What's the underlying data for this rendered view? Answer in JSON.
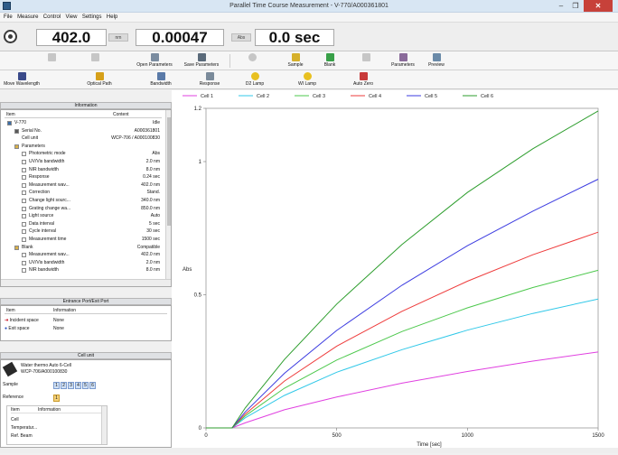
{
  "window": {
    "title": "Parallel Time Course Measurement - V-770/A000361801",
    "min_label": "–",
    "max_label": "❐",
    "close_label": "✕"
  },
  "menu": [
    "File",
    "Measure",
    "Control",
    "View",
    "Settings",
    "Help"
  ],
  "readout": {
    "wavelength": "402.0",
    "wavelength_unit": "nm",
    "abs": "0.00047",
    "abs_unit": "Abs",
    "time": "0.0 sec"
  },
  "toolbar1": [
    {
      "label": "",
      "disabled": true
    },
    {
      "label": "",
      "disabled": true
    },
    {
      "label": "Open Parameters",
      "disabled": false
    },
    {
      "label": "Save Parameters",
      "disabled": false
    },
    {
      "label": "",
      "disabled": true
    },
    {
      "label": "Sample",
      "disabled": false
    },
    {
      "label": "Blank",
      "disabled": false
    },
    {
      "label": "",
      "disabled": true
    },
    {
      "label": "Parameters",
      "disabled": false
    },
    {
      "label": "Preview",
      "disabled": false
    }
  ],
  "toolbar2": [
    "Move Wavelength",
    "Optical Path",
    "Bandwidth",
    "Response",
    "D2 Lamp",
    "WI Lamp",
    "Auto Zero"
  ],
  "colors": {
    "cell1": "#e040e0",
    "cell2": "#30c8e8",
    "cell3": "#4cc84c",
    "cell4": "#ee3b3b",
    "cell5": "#3b3be0",
    "cell6": "#2e9e2e"
  },
  "info_panel": {
    "title": "Information",
    "col_item": "Item",
    "col_content": "Content",
    "rows": [
      {
        "indent": 0,
        "item": "V-770",
        "content": "Idle",
        "icon": "instrument"
      },
      {
        "indent": 1,
        "item": "Serial No.",
        "content": "A000361801",
        "icon": "serial"
      },
      {
        "indent": 1,
        "item": "Cell unit",
        "content": "WCP-706 / A000100830",
        "icon": "none"
      },
      {
        "indent": 1,
        "item": "Parameters",
        "content": "",
        "icon": "folder"
      },
      {
        "indent": 2,
        "item": "Photometric mode",
        "content": "Abs",
        "icon": "doc"
      },
      {
        "indent": 2,
        "item": "UV/Vis bandwidth",
        "content": "2.0 nm",
        "icon": "doc"
      },
      {
        "indent": 2,
        "item": "NIR bandwidth",
        "content": "8.0 nm",
        "icon": "doc"
      },
      {
        "indent": 2,
        "item": "Response",
        "content": "0.24 sec",
        "icon": "doc"
      },
      {
        "indent": 2,
        "item": "Measurement wav...",
        "content": "402.0 nm",
        "icon": "doc"
      },
      {
        "indent": 2,
        "item": "Correction",
        "content": "Stand.",
        "icon": "doc"
      },
      {
        "indent": 2,
        "item": "Change light sourc...",
        "content": "340.0 nm",
        "icon": "doc"
      },
      {
        "indent": 2,
        "item": "Grating change wa...",
        "content": "850.0 nm",
        "icon": "doc"
      },
      {
        "indent": 2,
        "item": "Light source",
        "content": "Auto",
        "icon": "doc"
      },
      {
        "indent": 2,
        "item": "Data interval",
        "content": "5 sec",
        "icon": "doc"
      },
      {
        "indent": 2,
        "item": "Cycle interval",
        "content": "30 sec",
        "icon": "doc"
      },
      {
        "indent": 2,
        "item": "Measurement time",
        "content": "1500 sec",
        "icon": "doc"
      },
      {
        "indent": 1,
        "item": "Blank",
        "content": "Compatible",
        "icon": "folder"
      },
      {
        "indent": 2,
        "item": "Measurement wav...",
        "content": "402.0 nm",
        "icon": "doc"
      },
      {
        "indent": 2,
        "item": "UV/Vis bandwidth",
        "content": "2.0 nm",
        "icon": "doc"
      },
      {
        "indent": 2,
        "item": "NIR bandwidth",
        "content": "8.0 nm",
        "icon": "doc"
      }
    ]
  },
  "port_panel": {
    "title": "Entrance Port/Exit Port",
    "col_item": "Item",
    "col_info": "Information",
    "rows": [
      {
        "item": "Incident space",
        "info": "None"
      },
      {
        "item": "Exit space",
        "info": "None"
      }
    ]
  },
  "cell_panel": {
    "title": "Cell unit",
    "unit_name": "Water thermo Auto 6-Cell",
    "unit_serial": "WCP-706/A000100830",
    "sample_label": "Sample",
    "sample_cells": [
      "1",
      "2",
      "3",
      "4",
      "5",
      "6"
    ],
    "reference_label": "Reference",
    "reference_cells": [
      "1"
    ],
    "col_item": "Item",
    "col_info": "Information",
    "rows": [
      "Cell",
      "Temperatur...",
      "Ref. Beam"
    ]
  },
  "chart_data": {
    "type": "line",
    "xlabel": "Time [sec]",
    "ylabel": "Abs",
    "xlim": [
      0,
      1500
    ],
    "ylim": [
      0,
      1.2
    ],
    "xticks": [
      0,
      500,
      1000,
      1500
    ],
    "yticks": [
      0,
      0.5,
      1,
      1.2
    ],
    "xtick_labels": [
      "0",
      "500",
      "1000",
      "1500"
    ],
    "ytick_labels": [
      "0",
      "0.5",
      "1",
      "1.2"
    ],
    "legend_position": "top",
    "grid": false,
    "series": [
      {
        "name": "Cell 1",
        "color": "#e040e0",
        "x": [
          0,
          100,
          150,
          300,
          500,
          750,
          1000,
          1250,
          1500
        ],
        "values": [
          0,
          0,
          0.019,
          0.068,
          0.116,
          0.168,
          0.212,
          0.251,
          0.285
        ]
      },
      {
        "name": "Cell 2",
        "color": "#30c8e8",
        "x": [
          0,
          100,
          150,
          300,
          500,
          750,
          1000,
          1250,
          1500
        ],
        "values": [
          0,
          0,
          0.038,
          0.122,
          0.209,
          0.294,
          0.367,
          0.43,
          0.484
        ]
      },
      {
        "name": "Cell 3",
        "color": "#4cc84c",
        "x": [
          0,
          100,
          150,
          300,
          500,
          750,
          1000,
          1250,
          1500
        ],
        "values": [
          0,
          0,
          0.045,
          0.149,
          0.255,
          0.362,
          0.451,
          0.527,
          0.592
        ]
      },
      {
        "name": "Cell 4",
        "color": "#ee3b3b",
        "x": [
          0,
          100,
          150,
          300,
          500,
          750,
          1000,
          1250,
          1500
        ],
        "values": [
          0,
          0,
          0.052,
          0.176,
          0.307,
          0.438,
          0.551,
          0.65,
          0.735
        ]
      },
      {
        "name": "Cell 5",
        "color": "#3b3be0",
        "x": [
          0,
          100,
          150,
          300,
          500,
          750,
          1000,
          1250,
          1500
        ],
        "values": [
          0,
          0,
          0.06,
          0.205,
          0.366,
          0.536,
          0.684,
          0.814,
          0.934
        ]
      },
      {
        "name": "Cell 6",
        "color": "#2e9e2e",
        "x": [
          0,
          100,
          150,
          300,
          500,
          750,
          1000,
          1250,
          1500
        ],
        "values": [
          0,
          0,
          0.075,
          0.257,
          0.465,
          0.689,
          0.884,
          1.048,
          1.19
        ]
      }
    ]
  }
}
